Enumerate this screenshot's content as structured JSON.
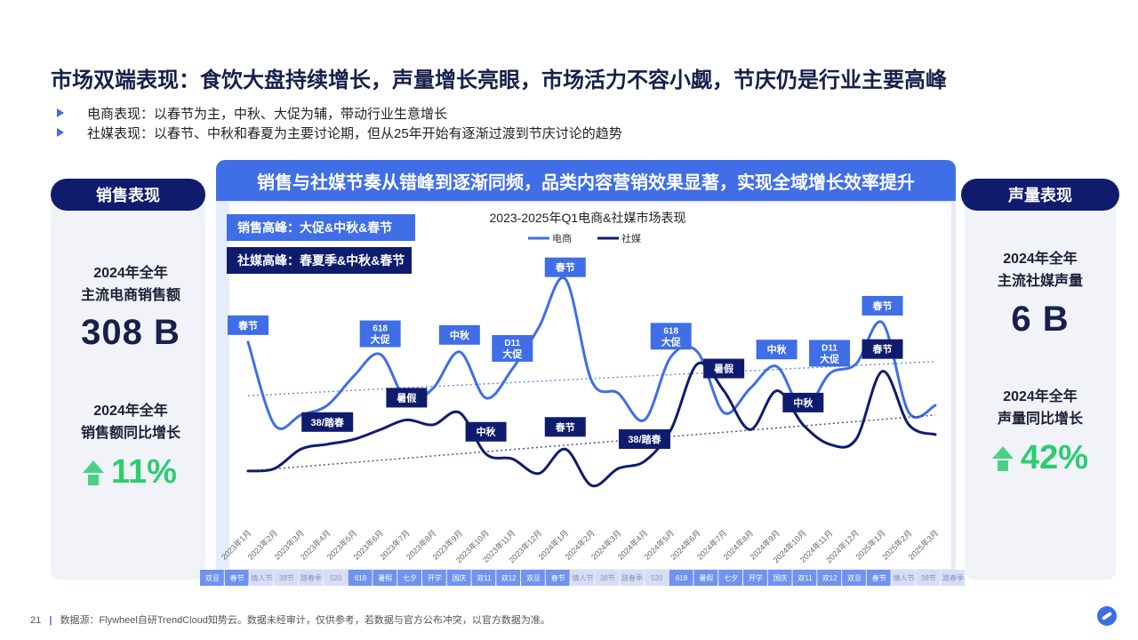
{
  "page": {
    "title": "市场双端表现：食饮大盘持续增长，声量增长亮眼，市场活力不容小觑，节庆仍是行业主要高峰",
    "bullets": [
      "电商表现：以春节为主，中秋、大促为辅，带动行业生意增长",
      "社媒表现：以春节、中秋和春夏为主要讨论期，但从25年开始有逐渐过渡到节庆讨论的趋势"
    ],
    "footer": {
      "page_number": "21",
      "source": "数据源：Flywheel自研TrendCloud知势云。数据未经审计，仅供参考，若数据与官方公布冲突，以官方数据为准。"
    }
  },
  "left_card": {
    "pill": "销售表现",
    "metric1_label_line1": "2024年全年",
    "metric1_label_line2": "主流电商销售额",
    "metric1_value": "308 B",
    "metric2_label_line1": "2024年全年",
    "metric2_label_line2": "销售额同比增长",
    "metric2_value": "11%"
  },
  "right_card": {
    "pill": "声量表现",
    "metric1_label_line1": "2024年全年",
    "metric1_label_line2": "主流社媒声量",
    "metric1_value": "6 B",
    "metric2_label_line1": "2024年全年",
    "metric2_label_line2": "声量同比增长",
    "metric2_value": "42%"
  },
  "panel": {
    "header": "销售与社媒节奏从错峰到逐渐同频，品类内容营销效果显著，实现全域增长效率提升",
    "peak_sales": "销售高峰：大促&中秋&春节",
    "peak_social": "社媒高峰：春夏季&中秋&春节"
  },
  "colors": {
    "navy": "#0f1c6e",
    "blue": "#3f6ee6",
    "green": "#2ecc71",
    "panel_bg": "#e6ecfb"
  },
  "chart_data": {
    "type": "line",
    "title": "2023-2025年Q1电商&社媒市场表现",
    "xlabel": "",
    "ylabel": "",
    "grid": false,
    "legend_position": "top-center",
    "y_axis_shown": false,
    "categories": [
      "2023年1月",
      "2023年2月",
      "2023年3月",
      "2023年4月",
      "2023年5月",
      "2023年6月",
      "2023年7月",
      "2023年8月",
      "2023年9月",
      "2023年10月",
      "2023年11月",
      "2023年12月",
      "2024年1月",
      "2024年2月",
      "2024年3月",
      "2024年4月",
      "2024年5月",
      "2024年6月",
      "2024年7月",
      "2024年8月",
      "2024年9月",
      "2024年10月",
      "2024年11月",
      "2024年12月",
      "2025年1月",
      "2025年2月",
      "2025年3月"
    ],
    "series": [
      {
        "name": "电商",
        "color": "#3f6ee6",
        "values": [
          84,
          50,
          54,
          58,
          70,
          79,
          60,
          65,
          80,
          61,
          73,
          90,
          110,
          68,
          63,
          52,
          78,
          80,
          55,
          65,
          74,
          56,
          71,
          75,
          92,
          55,
          58
        ],
        "trend": [
          62,
          76
        ]
      },
      {
        "name": "社媒",
        "color": "#0f1c6e",
        "values": [
          31,
          32,
          40,
          42,
          44,
          48,
          52,
          50,
          55,
          38,
          36,
          30,
          40,
          25,
          32,
          35,
          48,
          75,
          64,
          48,
          64,
          50,
          42,
          44,
          72,
          50,
          46
        ],
        "trend": [
          31,
          54
        ]
      }
    ],
    "annotations": [
      {
        "text": "春节",
        "series": "电商",
        "index": 0
      },
      {
        "text": "618 大促",
        "series": "电商",
        "index": 5
      },
      {
        "text": "中秋",
        "series": "电商",
        "index": 8
      },
      {
        "text": "D11 大促",
        "series": "电商",
        "index": 10
      },
      {
        "text": "春节",
        "series": "电商",
        "index": 12
      },
      {
        "text": "618 大促",
        "series": "电商",
        "index": 16
      },
      {
        "text": "中秋",
        "series": "电商",
        "index": 20
      },
      {
        "text": "D11 大促",
        "series": "电商",
        "index": 22
      },
      {
        "text": "春节",
        "series": "电商",
        "index": 24
      },
      {
        "text": "38/踏春",
        "series": "社媒",
        "index": 3
      },
      {
        "text": "暑假",
        "series": "社媒",
        "index": 6
      },
      {
        "text": "中秋",
        "series": "社媒",
        "index": 9
      },
      {
        "text": "春节",
        "series": "社媒",
        "index": 12
      },
      {
        "text": "38/踏春",
        "series": "社媒",
        "index": 15
      },
      {
        "text": "暑假",
        "series": "社媒",
        "index": 18
      },
      {
        "text": "中秋",
        "series": "社媒",
        "index": 21
      },
      {
        "text": "春节",
        "series": "社媒",
        "index": 24
      }
    ],
    "event_bar": [
      "双旦",
      "春节",
      "情人节",
      "38节",
      "踏春季",
      "520",
      "618",
      "暑假",
      "七夕",
      "开学",
      "国庆",
      "双11",
      "双12",
      "双旦",
      "春节",
      "情人节",
      "38节",
      "踏春季",
      "520",
      "618",
      "暑假",
      "七夕",
      "开学",
      "国庆",
      "双11",
      "双12",
      "双旦",
      "春节",
      "情人节",
      "38节",
      "踏春季"
    ],
    "event_bar_highlight": [
      "双旦",
      "春节",
      "618",
      "暑假",
      "七夕",
      "开学",
      "国庆",
      "双11",
      "双12"
    ]
  }
}
